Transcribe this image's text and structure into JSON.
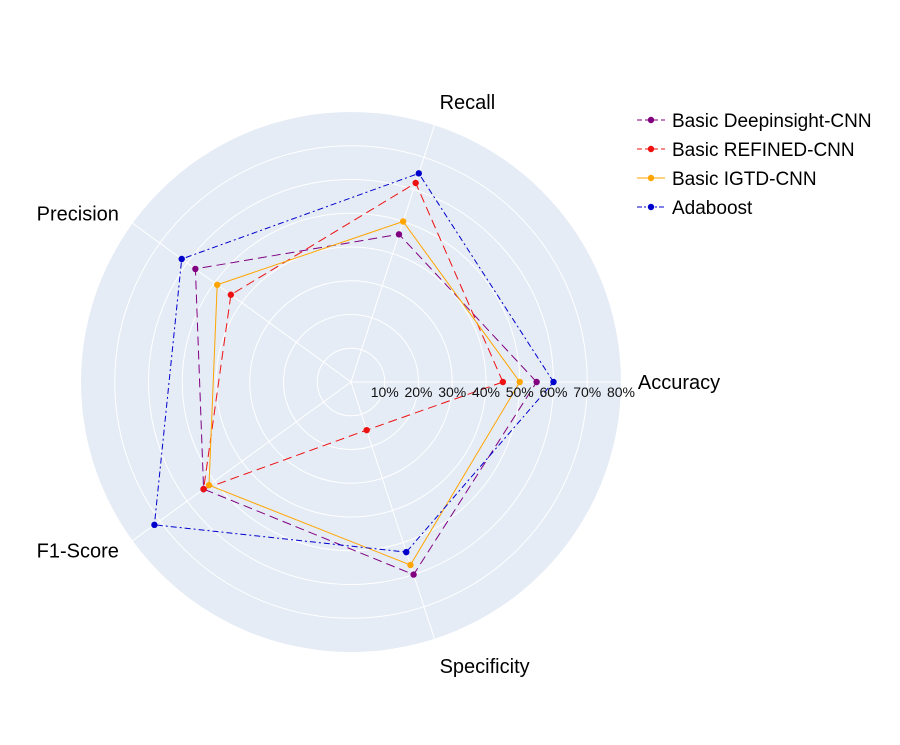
{
  "chart_data": {
    "type": "radar",
    "axes": [
      "Accuracy",
      "Recall",
      "Precision",
      "F1-Score",
      "Specificity"
    ],
    "radial_ticks": [
      "10%",
      "20%",
      "30%",
      "40%",
      "50%",
      "60%",
      "70%",
      "80%"
    ],
    "radial_range": [
      0,
      80
    ],
    "grid": true,
    "legend_position": "top-right",
    "series": [
      {
        "name": "Basic Deepinsight-CNN",
        "color": "#800080",
        "dash": "dash",
        "values": [
          55,
          46,
          57,
          54,
          60
        ]
      },
      {
        "name": "Basic REFINED-CNN",
        "color": "#ee1111",
        "dash": "dash",
        "values": [
          45,
          62,
          44,
          54,
          15
        ]
      },
      {
        "name": "Basic IGTD-CNN",
        "color": "#ffa500",
        "dash": "solid",
        "values": [
          50,
          50,
          49,
          52,
          57
        ]
      },
      {
        "name": "Adaboost",
        "color": "#0000cc",
        "dash": "dashdot",
        "values": [
          60,
          65,
          62,
          72,
          53
        ]
      }
    ]
  }
}
